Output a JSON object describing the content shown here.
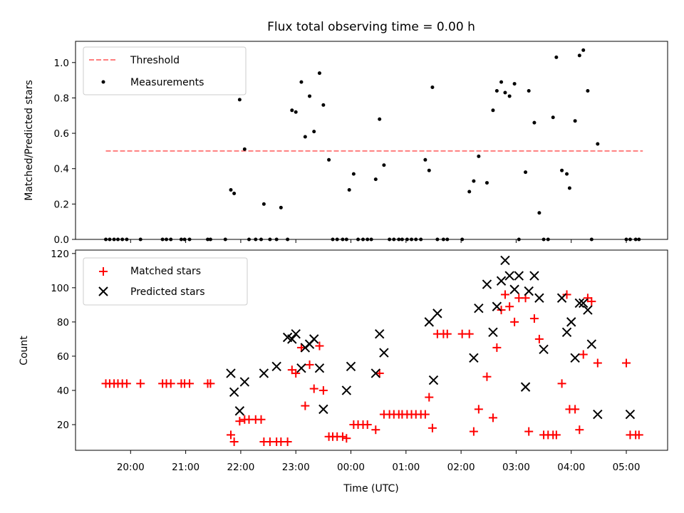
{
  "title": "Flux total observing time = 0.00 h",
  "chart_data": [
    {
      "type": "scatter",
      "panel": "top",
      "ylabel": "Matched/Predicted stars",
      "xlabel": "",
      "ylim": [
        0.0,
        1.12
      ],
      "yticks": [
        0.0,
        0.2,
        0.4,
        0.6,
        0.8,
        1.0
      ],
      "ytick_labels": [
        "0.0",
        "0.2",
        "0.4",
        "0.6",
        "0.8",
        "1.0"
      ],
      "legend_position": "upper-left",
      "threshold": {
        "name": "Threshold",
        "y": 0.5,
        "x_start": 19.55,
        "x_end": 29.3,
        "color": "#ff7f7f"
      },
      "series": [
        {
          "name": "Measurements",
          "color": "#000000",
          "x": [
            19.55,
            19.62,
            19.7,
            19.77,
            19.85,
            19.93,
            20.18,
            20.58,
            20.65,
            20.73,
            20.92,
            20.98,
            21.07,
            21.4,
            21.45,
            21.72,
            21.82,
            21.88,
            21.98,
            22.07,
            22.15,
            22.27,
            22.37,
            22.42,
            22.53,
            22.65,
            22.73,
            22.85,
            22.93,
            23.0,
            23.1,
            23.17,
            23.25,
            23.33,
            23.43,
            23.5,
            23.6,
            23.67,
            23.75,
            23.85,
            23.92,
            23.97,
            24.05,
            24.13,
            24.22,
            24.3,
            24.37,
            24.45,
            24.52,
            24.6,
            24.7,
            24.78,
            24.87,
            24.93,
            25.02,
            25.1,
            25.18,
            25.27,
            25.35,
            25.42,
            25.48,
            25.57,
            25.68,
            25.75,
            26.02,
            26.15,
            26.23,
            26.32,
            26.47,
            26.58,
            26.65,
            26.73,
            26.8,
            26.88,
            26.97,
            27.05,
            27.17,
            27.23,
            27.33,
            27.42,
            27.5,
            27.58,
            27.67,
            27.73,
            27.83,
            27.92,
            27.97,
            28.07,
            28.15,
            28.22,
            28.3,
            28.37,
            28.48,
            29.0,
            29.07,
            29.17,
            29.23
          ],
          "y": [
            0,
            0,
            0,
            0,
            0,
            0,
            0,
            0,
            0,
            0,
            0,
            0,
            0,
            0,
            0,
            0,
            0.28,
            0.26,
            0.79,
            0.51,
            0,
            0,
            0,
            0.2,
            0,
            0,
            0.18,
            0,
            0.73,
            0.72,
            0.89,
            0.58,
            0.81,
            0.61,
            0.94,
            0.76,
            0.45,
            0,
            0,
            0,
            0,
            0.28,
            0.37,
            0,
            0,
            0,
            0,
            0.34,
            0.68,
            0.42,
            0,
            0,
            0,
            0,
            0,
            0,
            0,
            0,
            0.45,
            0.39,
            0.86,
            0,
            0,
            0,
            0,
            0.27,
            0.33,
            0.47,
            0.32,
            0.73,
            0.84,
            0.89,
            0.83,
            0.81,
            0.88,
            0,
            0.38,
            0.84,
            0.66,
            0.15,
            0,
            0,
            0.69,
            1.03,
            0.39,
            0.37,
            0.29,
            0.67,
            1.04,
            1.07,
            0.84,
            0,
            0.54,
            0,
            0,
            0,
            0
          ]
        }
      ]
    },
    {
      "type": "scatter",
      "panel": "bottom",
      "xlabel": "Time (UTC)",
      "ylabel": "Count",
      "xlim": [
        19.0,
        29.75
      ],
      "ylim": [
        5,
        122
      ],
      "yticks": [
        20,
        40,
        60,
        80,
        100,
        120
      ],
      "ytick_labels": [
        "20",
        "40",
        "60",
        "80",
        "100",
        "120"
      ],
      "xticks": [
        20,
        21,
        22,
        23,
        24,
        25,
        26,
        27,
        28,
        29
      ],
      "xtick_labels": [
        "20:00",
        "21:00",
        "22:00",
        "23:00",
        "00:00",
        "01:00",
        "02:00",
        "03:00",
        "04:00",
        "05:00"
      ],
      "legend_position": "upper-left",
      "series": [
        {
          "name": "Matched stars",
          "marker": "+",
          "color": "#ff0000",
          "x": [
            19.55,
            19.62,
            19.7,
            19.77,
            19.85,
            19.93,
            20.18,
            20.58,
            20.65,
            20.73,
            20.92,
            20.98,
            21.07,
            21.4,
            21.45,
            21.82,
            21.88,
            21.98,
            22.07,
            22.15,
            22.27,
            22.37,
            22.42,
            22.53,
            22.65,
            22.73,
            22.85,
            22.93,
            23.0,
            23.1,
            23.17,
            23.25,
            23.33,
            23.43,
            23.5,
            23.6,
            23.67,
            23.75,
            23.85,
            23.92,
            24.05,
            24.13,
            24.22,
            24.3,
            24.45,
            24.52,
            24.6,
            24.7,
            24.78,
            24.87,
            24.93,
            25.02,
            25.1,
            25.18,
            25.27,
            25.35,
            25.42,
            25.48,
            25.57,
            25.68,
            25.75,
            26.02,
            26.15,
            26.23,
            26.32,
            26.47,
            26.58,
            26.65,
            26.73,
            26.8,
            26.88,
            26.97,
            27.05,
            27.17,
            27.23,
            27.33,
            27.42,
            27.5,
            27.58,
            27.67,
            27.73,
            27.83,
            27.92,
            27.97,
            28.07,
            28.15,
            28.22,
            28.3,
            28.37,
            28.48,
            29.0,
            29.07,
            29.17,
            29.23
          ],
          "y": [
            44,
            44,
            44,
            44,
            44,
            44,
            44,
            44,
            44,
            44,
            44,
            44,
            44,
            44,
            44,
            14,
            10,
            22,
            23,
            23,
            23,
            23,
            10,
            10,
            10,
            10,
            10,
            52,
            50,
            65,
            31,
            55,
            41,
            66,
            40,
            13,
            13,
            13,
            13,
            12,
            20,
            20,
            20,
            20,
            17,
            50,
            26,
            26,
            26,
            26,
            26,
            26,
            26,
            26,
            26,
            26,
            36,
            18,
            73,
            73,
            73,
            73,
            73,
            16,
            29,
            48,
            24,
            65,
            87,
            96,
            89,
            80,
            94,
            94,
            16,
            82,
            70,
            14,
            14,
            14,
            14,
            44,
            96,
            29,
            29,
            17,
            61,
            94,
            92,
            56,
            56,
            14,
            14,
            14
          ]
        },
        {
          "name": "Predicted stars",
          "marker": "x",
          "color": "#000000",
          "x": [
            21.82,
            21.88,
            21.98,
            22.07,
            22.42,
            22.65,
            22.85,
            22.93,
            23.0,
            23.1,
            23.17,
            23.25,
            23.33,
            23.43,
            23.5,
            23.92,
            24.0,
            24.45,
            24.52,
            24.6,
            25.42,
            25.5,
            25.57,
            26.23,
            26.32,
            26.47,
            26.58,
            26.65,
            26.73,
            26.8,
            26.88,
            26.97,
            27.05,
            27.17,
            27.23,
            27.33,
            27.42,
            27.5,
            27.83,
            27.92,
            28.0,
            28.07,
            28.15,
            28.22,
            28.3,
            28.37,
            28.48,
            29.07
          ],
          "y": [
            50,
            39,
            28,
            45,
            50,
            54,
            71,
            70,
            73,
            53,
            65,
            67,
            70,
            53,
            29,
            40,
            54,
            50,
            73,
            62,
            80,
            46,
            85,
            59,
            88,
            102,
            74,
            89,
            104,
            116,
            107,
            99,
            107,
            42,
            98,
            107,
            94,
            64,
            94,
            74,
            80,
            59,
            91,
            91,
            87,
            67,
            26,
            26
          ]
        }
      ]
    }
  ]
}
